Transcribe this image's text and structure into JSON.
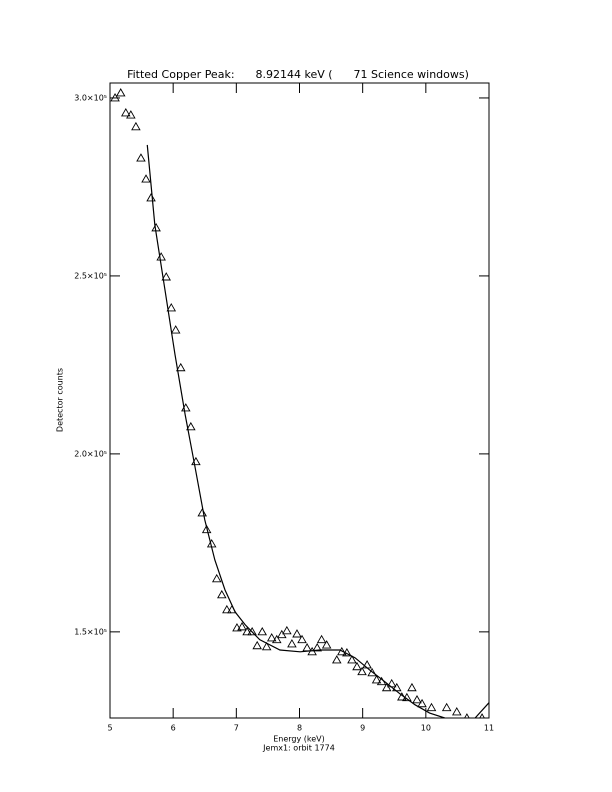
{
  "chart_data": {
    "type": "scatter",
    "title": "Fitted Copper Peak:      8.92144 keV (      71 Science windows)",
    "xlabel": "Energy (keV)",
    "subtitle": "Jemx1: orbit 1774",
    "ylabel": "Detector counts",
    "xlim": [
      5,
      11
    ],
    "xticks": [
      5,
      6,
      7,
      8,
      9,
      10,
      11
    ],
    "ylim": [
      125800,
      304200
    ],
    "yticks": [
      {
        "value": 150000,
        "label": "1.5×10⁵"
      },
      {
        "value": 200000,
        "label": "2.0×10⁵"
      },
      {
        "value": 250000,
        "label": "2.5×10⁵"
      },
      {
        "value": 300000,
        "label": "3.0×10⁵"
      }
    ],
    "color": "#000000",
    "points": {
      "x": [
        5.08,
        5.17,
        5.25,
        5.33,
        5.41,
        5.49,
        5.57,
        5.65,
        5.73,
        5.81,
        5.89,
        5.97,
        6.04,
        6.12,
        6.2,
        6.28,
        6.36,
        6.46,
        6.53,
        6.61,
        6.69,
        6.77,
        6.85,
        6.93,
        7.01,
        7.09,
        7.17,
        7.25,
        7.33,
        7.41,
        7.48,
        7.56,
        7.64,
        7.72,
        7.8,
        7.88,
        7.96,
        8.04,
        8.12,
        8.2,
        8.28,
        8.35,
        8.43,
        8.59,
        8.67,
        8.75,
        8.83,
        8.91,
        8.99,
        9.07,
        9.15,
        9.22,
        9.3,
        9.38,
        9.46,
        9.54,
        9.62,
        9.7,
        9.78,
        9.86,
        9.94,
        10.09,
        10.33,
        10.49,
        10.65,
        10.89
      ],
      "values": [
        300000,
        301400,
        295800,
        295200,
        291900,
        283100,
        277200,
        271900,
        263500,
        255300,
        249700,
        241000,
        234800,
        224200,
        212900,
        207600,
        197800,
        183400,
        178700,
        174700,
        164900,
        160400,
        156200,
        156200,
        151100,
        151400,
        150000,
        150000,
        146100,
        150000,
        145800,
        148300,
        147800,
        149200,
        150300,
        146600,
        149400,
        147800,
        145500,
        144400,
        145500,
        147800,
        146300,
        142100,
        144400,
        144100,
        142100,
        140200,
        138800,
        140700,
        138500,
        136500,
        136000,
        134300,
        135400,
        134300,
        131700,
        131500,
        134300,
        130900,
        129800,
        128700,
        128700,
        127500,
        125800,
        125800
      ]
    },
    "fit": {
      "x": [
        5.59,
        5.71,
        5.87,
        6.03,
        6.19,
        6.34,
        6.5,
        6.66,
        6.82,
        6.98,
        7.14,
        7.37,
        7.69,
        8.01,
        8.32,
        8.64,
        8.88,
        9.11,
        9.35,
        9.59,
        9.83,
        10.06,
        10.3,
        10.54,
        10.78,
        11.0
      ],
      "values": [
        286800,
        264300,
        246100,
        227800,
        211000,
        196900,
        181500,
        170200,
        161800,
        155600,
        152000,
        147800,
        144900,
        144400,
        144900,
        144900,
        142700,
        139300,
        136000,
        132600,
        129500,
        127200,
        125800,
        124700,
        125800,
        130100
      ]
    }
  }
}
